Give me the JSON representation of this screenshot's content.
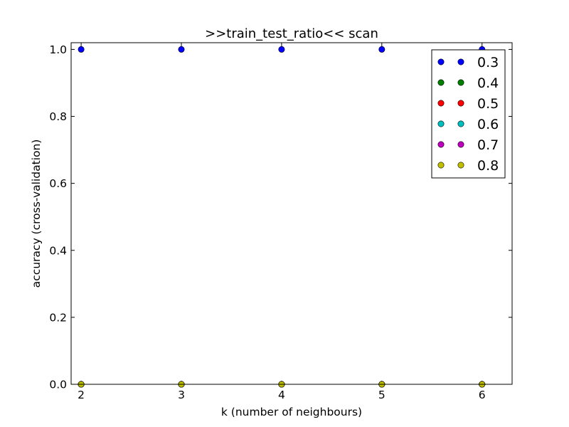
{
  "chart_data": {
    "type": "scatter",
    "title": ">>train_test_ratio<< scan",
    "xlabel": "k (number of neighbours)",
    "ylabel": "accuracy (cross-validation)",
    "xlim": [
      1.9,
      6.3
    ],
    "ylim": [
      0.0,
      1.02
    ],
    "xticks": [
      2,
      3,
      4,
      5,
      6
    ],
    "yticks": [
      0.0,
      0.2,
      0.4,
      0.6,
      0.8,
      1.0
    ],
    "ytick_labels": [
      "0.0",
      "0.2",
      "0.4",
      "0.6",
      "0.8",
      "1.0"
    ],
    "grid": false,
    "legend_position": "top-right",
    "x": [
      2,
      3,
      4,
      5,
      6
    ],
    "series": [
      {
        "name": "0.3",
        "color": "#0000ff",
        "values": [
          1.0,
          1.0,
          1.0,
          1.0,
          1.0
        ]
      },
      {
        "name": "0.4",
        "color": "#008000",
        "values": [
          0.0,
          0.0,
          0.0,
          0.0,
          0.0
        ]
      },
      {
        "name": "0.5",
        "color": "#ff0000",
        "values": [
          0.0,
          0.0,
          0.0,
          0.0,
          0.0
        ]
      },
      {
        "name": "0.6",
        "color": "#00bfbf",
        "values": [
          0.0,
          0.0,
          0.0,
          0.0,
          0.0
        ]
      },
      {
        "name": "0.7",
        "color": "#bf00bf",
        "values": [
          0.0,
          0.0,
          0.0,
          0.0,
          0.0
        ]
      },
      {
        "name": "0.8",
        "color": "#bfbf00",
        "values": [
          0.0,
          0.0,
          0.0,
          0.0,
          0.0
        ]
      }
    ]
  }
}
